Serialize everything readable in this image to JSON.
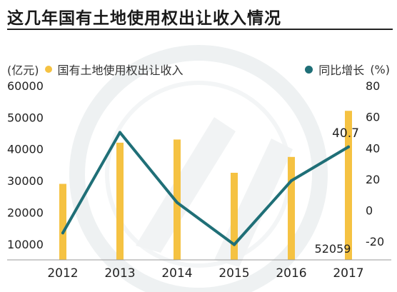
{
  "title": "这几年国有土地使用权出让收入情况",
  "legend": {
    "left_unit": "(亿元)",
    "bar_series": "国有土地使用权出让收入",
    "line_series": "同比增长",
    "right_unit": "(%)"
  },
  "colors": {
    "bar": "#F5C242",
    "line": "#1F6F77",
    "background": "#FFFFFF",
    "text": "#222222",
    "watermark": "#EEF1F2"
  },
  "chart_data": {
    "type": "bar+line",
    "categories": [
      "2012",
      "2013",
      "2014",
      "2015",
      "2016",
      "2017"
    ],
    "series": [
      {
        "name": "国有土地使用权出让收入",
        "type": "bar",
        "axis": "left",
        "values": [
          29000,
          42000,
          43000,
          32500,
          37500,
          52059
        ]
      },
      {
        "name": "同比增长",
        "type": "line",
        "axis": "right",
        "values": [
          -14.5,
          50.0,
          5.0,
          -22.0,
          19.0,
          40.7
        ]
      }
    ],
    "left_axis": {
      "ticks": [
        "60000",
        "50000",
        "40000",
        "30000",
        "20000",
        "10000"
      ],
      "ylim": [
        5000,
        60000
      ]
    },
    "right_axis": {
      "ticks": [
        "80",
        "60",
        "40",
        "20",
        "0",
        "-20"
      ],
      "ylim": [
        -31.8,
        80
      ]
    },
    "annotations": [
      {
        "text": "40.7",
        "category": "2017",
        "series": "同比增长"
      },
      {
        "text": "52059",
        "category": "2017",
        "series": "国有土地使用权出让收入"
      }
    ],
    "grid": false
  }
}
